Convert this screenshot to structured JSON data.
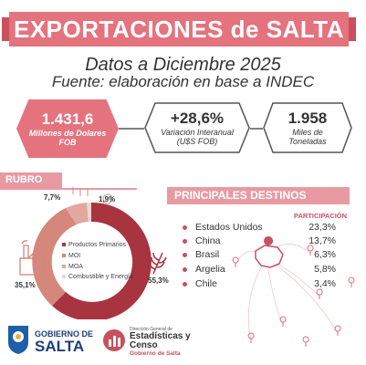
{
  "header": {
    "title": "EXPORTACIONES de SALTA",
    "subtitle": "Datos a Diciembre 2025",
    "source": "Fuente: elaboración en base a INDEC"
  },
  "kpis": [
    {
      "value": "1.431,6",
      "label_line1": "Millones de Dolares",
      "label_line2": "FOB"
    },
    {
      "value": "+28,6%",
      "label_line1": "Variación Interanual",
      "label_line2": "(U$S FOB)"
    },
    {
      "value": "1.958",
      "label_line1": "Miles de",
      "label_line2": "Toneladas"
    }
  ],
  "rubro": {
    "heading": "RUBRO",
    "legend": [
      {
        "label": "Productos Primarios",
        "color": "#a8343f"
      },
      {
        "label": "MOI",
        "color": "#d4877a"
      },
      {
        "label": "MOA",
        "color": "#e0a8a0"
      },
      {
        "label": "Combustible y Energía",
        "color": "#f0d4d0"
      }
    ],
    "labels": {
      "pp": "55,3%",
      "moa": "35,1%",
      "moi": "7,7%",
      "comb": "1,9%"
    }
  },
  "destinos": {
    "heading": "PRINCIPALES DESTINOS",
    "participacion_label": "PARTICIPACIÓN",
    "items": [
      {
        "name": "Estados Unidos",
        "pct": "23,3%"
      },
      {
        "name": "China",
        "pct": "13,7%"
      },
      {
        "name": "Brasil",
        "pct": "6,3%"
      },
      {
        "name": "Argelia",
        "pct": "5,8%"
      },
      {
        "name": "Chile",
        "pct": "3,4%"
      }
    ]
  },
  "footer": {
    "gob_line1": "GOBIERNO DE",
    "gob_line2": "SALTA",
    "dge_line1": "Dirección General de",
    "dge_line2": "Estadísticas y",
    "dge_line3": "Censo",
    "dge_line4": "Gobierno de Salta"
  },
  "colors": {
    "accent": "#e4737e",
    "dark_accent": "#a8343f",
    "light_accent": "#e89aa3"
  }
}
